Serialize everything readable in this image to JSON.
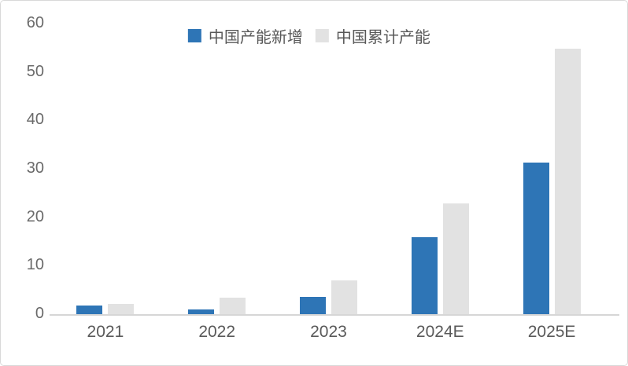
{
  "chart_data": {
    "type": "bar",
    "title": "",
    "categories": [
      "2021",
      "2022",
      "2023",
      "2024E",
      "2025E"
    ],
    "series": [
      {
        "name": "中国产能新增",
        "color": "#2E75B6",
        "values": [
          2,
          1.2,
          3.7,
          16,
          31.5
        ]
      },
      {
        "name": "中国累计产能",
        "color": "#E2E2E2",
        "values": [
          2.3,
          3.5,
          7.2,
          23,
          55
        ]
      }
    ],
    "xlabel": "",
    "ylabel": "",
    "ylim": [
      0,
      60
    ],
    "yticks": [
      0,
      10,
      20,
      30,
      40,
      50,
      60
    ],
    "grid": false,
    "legend_position": "top-center"
  },
  "colors": {
    "bar_blue": "#2E75B6",
    "bar_gray": "#E2E2E2",
    "tick_text": "#6A6A6A",
    "label_text": "#595959",
    "axis_line": "#D6D6D6",
    "border": "#D9D9D9",
    "background": "#FFFFFF"
  }
}
